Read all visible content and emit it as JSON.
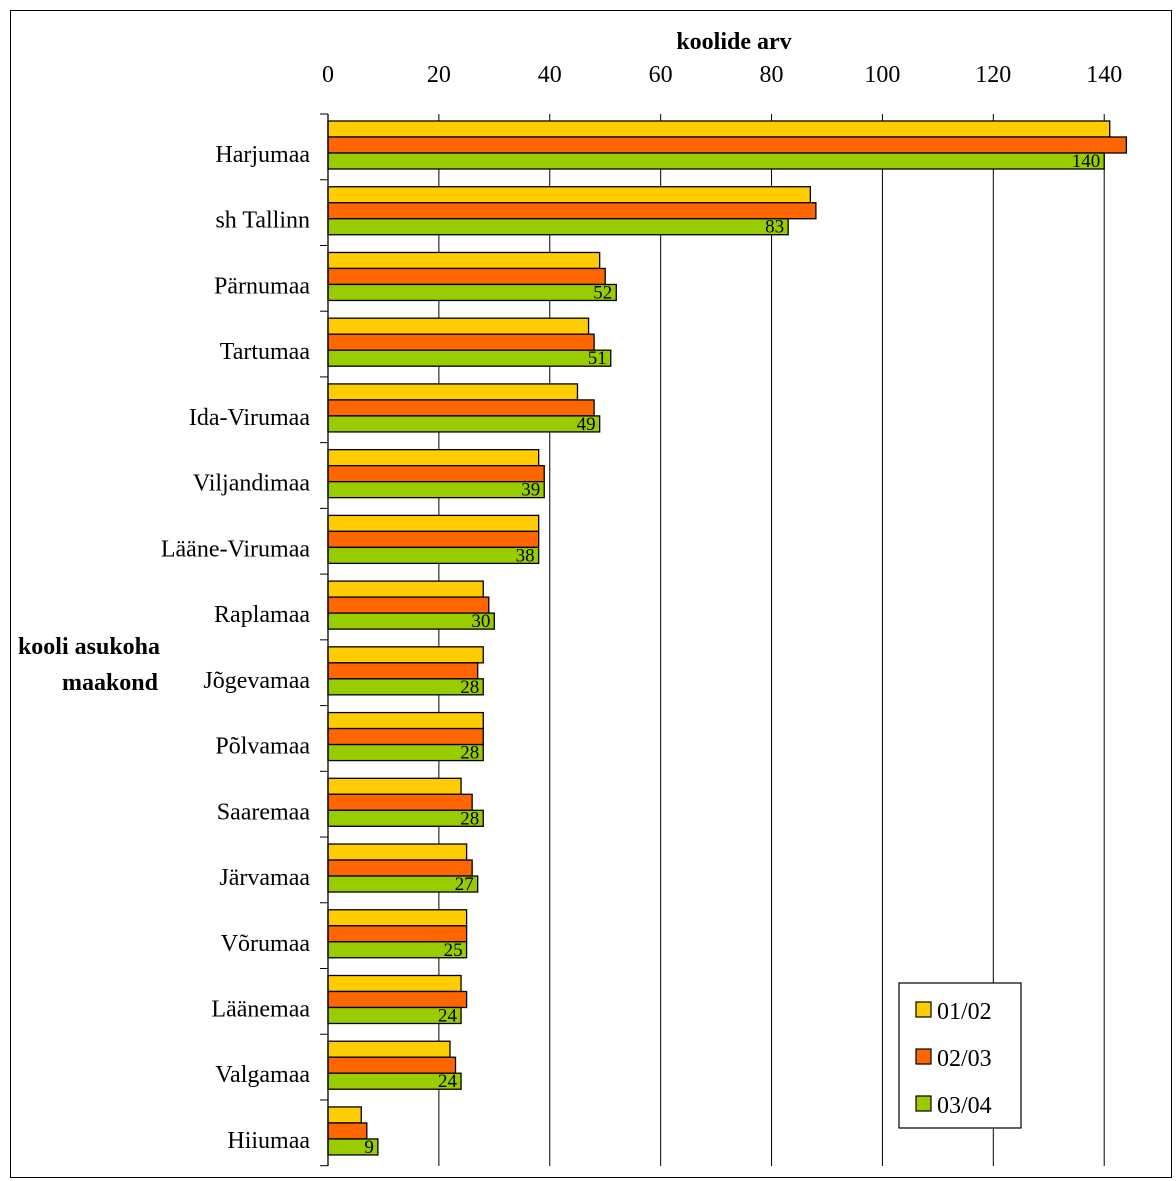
{
  "chart_data": {
    "type": "bar",
    "orientation": "horizontal",
    "xlabel": "koolide arv",
    "ylabel_line1": "kooli asukoha",
    "ylabel_line2": "maakond",
    "xlim": [
      0,
      147
    ],
    "xticks": [
      0,
      20,
      40,
      60,
      80,
      100,
      120,
      140
    ],
    "grid": true,
    "legend_position": "bottom-right",
    "categories": [
      "Harjumaa",
      "sh Tallinn",
      "Pärnumaa",
      "Tartumaa",
      "Ida-Virumaa",
      "Viljandimaa",
      "Lääne-Virumaa",
      "Raplamaa",
      "Jõgevamaa",
      "Põlvamaa",
      "Saaremaa",
      "Järvamaa",
      "Võrumaa",
      "Läänemaa",
      "Valgamaa",
      "Hiiumaa"
    ],
    "series": [
      {
        "name": "01/02",
        "color": "#FFCC00",
        "values": [
          141,
          87,
          49,
          47,
          45,
          38,
          38,
          28,
          28,
          28,
          24,
          25,
          25,
          24,
          22,
          6
        ]
      },
      {
        "name": "02/03",
        "color": "#FF6600",
        "values": [
          144,
          88,
          50,
          48,
          48,
          39,
          38,
          29,
          27,
          28,
          26,
          26,
          25,
          25,
          23,
          7
        ]
      },
      {
        "name": "03/04",
        "color": "#99CC00",
        "values": [
          140,
          83,
          52,
          51,
          49,
          39,
          38,
          30,
          28,
          28,
          28,
          27,
          25,
          24,
          24,
          9
        ]
      }
    ],
    "data_labels_series": "03/04",
    "data_labels": [
      "140",
      "83",
      "52",
      "51",
      "49",
      "39",
      "38",
      "30",
      "28",
      "28",
      "28",
      "27",
      "25",
      "24",
      "24",
      "9"
    ]
  }
}
